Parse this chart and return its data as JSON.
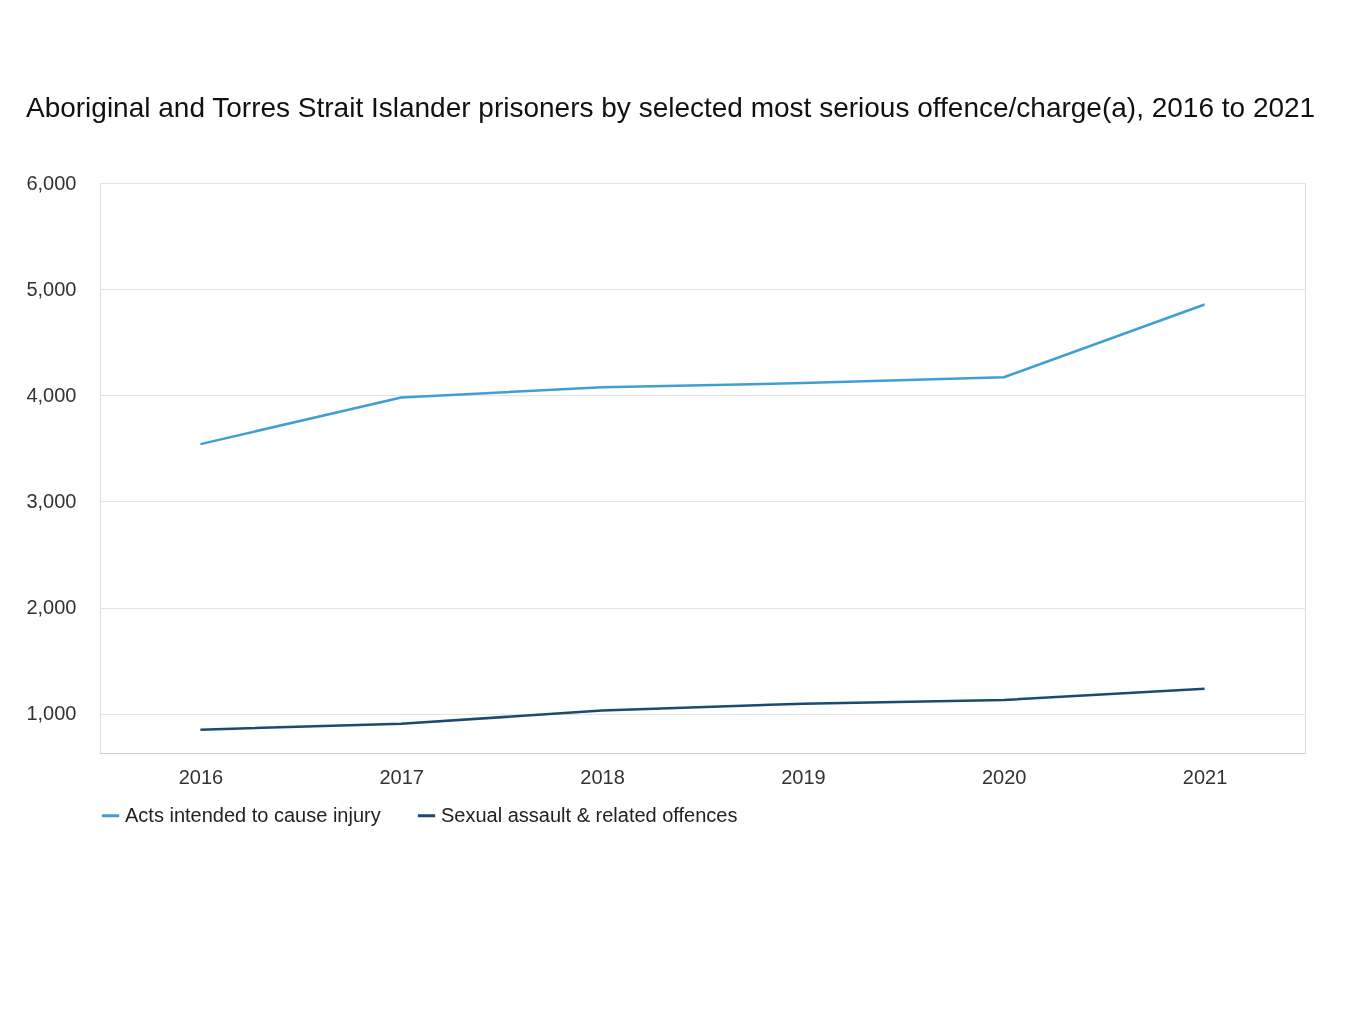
{
  "chart_data": {
    "type": "line",
    "title": "Aboriginal and Torres Strait Islander prisoners by selected most serious offence/charge(a), 2016 to 2021",
    "categories": [
      "2016",
      "2017",
      "2018",
      "2019",
      "2020",
      "2021"
    ],
    "series": [
      {
        "name": "Acts intended to cause injury",
        "color": "#3f9fd5",
        "values": [
          3540,
          3980,
          4075,
          4115,
          4170,
          4855
        ]
      },
      {
        "name": "Sexual assault & related offences",
        "color": "#1a4a72",
        "values": [
          850,
          905,
          1030,
          1095,
          1130,
          1235
        ]
      }
    ],
    "ylim": [
      630,
      6000
    ],
    "yticks": [
      {
        "value": 1000,
        "label": "1,000"
      },
      {
        "value": 2000,
        "label": "2,000"
      },
      {
        "value": 3000,
        "label": "3,000"
      },
      {
        "value": 4000,
        "label": "4,000"
      },
      {
        "value": 5000,
        "label": "5,000"
      },
      {
        "value": 6000,
        "label": "6,000"
      }
    ],
    "grid": "y",
    "legend": "bottom",
    "marker": "none",
    "line_style": "solid"
  }
}
